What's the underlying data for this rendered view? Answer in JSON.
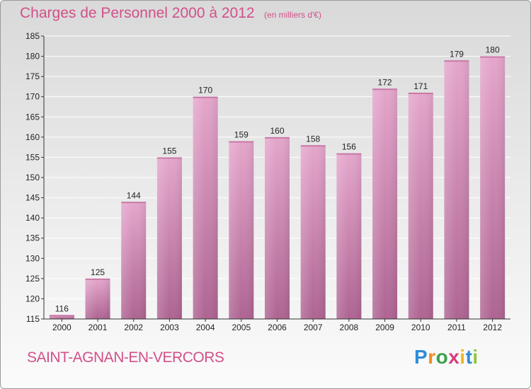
{
  "header": {
    "title": "Charges de Personnel 2000 à 2012",
    "subtitle": "(en milliers d'€)"
  },
  "footer": {
    "commune": "SAINT-AGNAN-EN-VERCORS",
    "logo": "Proxiti"
  },
  "colors": {
    "title": "#d2508a",
    "bar_top": "#e5a6cc",
    "bar_bottom": "#ae6492",
    "axis": "#333333",
    "grid": "#ffffff"
  },
  "chart_data": {
    "type": "bar",
    "categories": [
      "2000",
      "2001",
      "2002",
      "2003",
      "2004",
      "2005",
      "2006",
      "2007",
      "2008",
      "2009",
      "2010",
      "2011",
      "2012"
    ],
    "values": [
      116,
      125,
      144,
      155,
      170,
      159,
      160,
      158,
      156,
      172,
      171,
      179,
      180
    ],
    "title": "Charges de Personnel 2000 à 2012",
    "subtitle": "(en milliers d'€)",
    "xlabel": "",
    "ylabel": "",
    "ylim": [
      115,
      185
    ],
    "yticks": [
      115,
      120,
      125,
      130,
      135,
      140,
      145,
      150,
      155,
      160,
      165,
      170,
      175,
      180,
      185
    ],
    "grid": true,
    "data_labels": true
  }
}
